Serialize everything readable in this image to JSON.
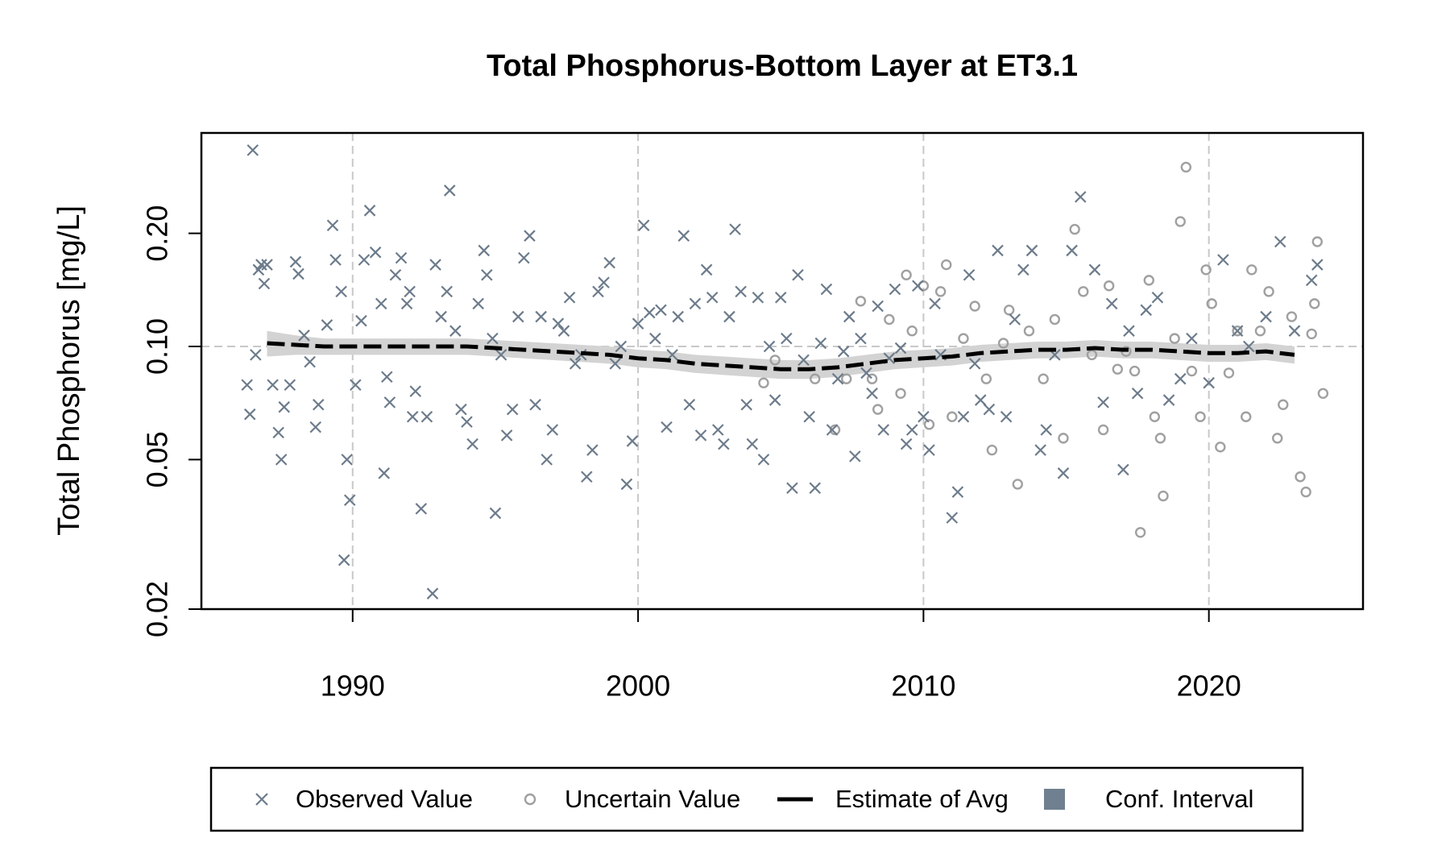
{
  "chart_data": {
    "type": "scatter",
    "title": "Total Phosphorus-Bottom Layer at ET3.1",
    "y_label": "Total Phosphorus [mg/L]",
    "y_log": true,
    "xlim": [
      1984.7,
      2025.4
    ],
    "ylim": [
      0.02,
      0.37
    ],
    "xticks": [
      1990,
      2000,
      2010,
      2020
    ],
    "yticks": [
      0.02,
      0.05,
      {
        "value": 0.1,
        "label": "0.10"
      },
      {
        "value": 0.2,
        "label": "0.20"
      }
    ],
    "x_grid": true,
    "y_grid_at": [
      0.1
    ],
    "legend": "bottom",
    "series": [
      {
        "name": "Observed Value",
        "marker": "x",
        "color": "#6c7b8b",
        "x": [
          1986.3,
          1986.4,
          1986.5,
          1986.6,
          1986.7,
          1986.8,
          1986.9,
          1987.0,
          1987.2,
          1987.4,
          1987.5,
          1987.6,
          1987.8,
          1988.0,
          1988.1,
          1988.3,
          1988.5,
          1988.7,
          1988.8,
          1989.1,
          1989.3,
          1989.4,
          1989.6,
          1989.7,
          1989.8,
          1989.9,
          1990.1,
          1990.3,
          1990.4,
          1990.6,
          1990.8,
          1991.0,
          1991.1,
          1991.2,
          1991.3,
          1991.5,
          1991.7,
          1991.9,
          1992.0,
          1992.1,
          1992.2,
          1992.4,
          1992.6,
          1992.8,
          1992.9,
          1993.1,
          1993.3,
          1993.4,
          1993.6,
          1993.8,
          1994.0,
          1994.2,
          1994.4,
          1994.6,
          1994.7,
          1994.9,
          1995.0,
          1995.2,
          1995.4,
          1995.6,
          1995.8,
          1996.0,
          1996.2,
          1996.4,
          1996.6,
          1996.8,
          1997.0,
          1997.2,
          1997.4,
          1997.6,
          1997.8,
          1998.0,
          1998.2,
          1998.4,
          1998.6,
          1998.8,
          1999.0,
          1999.2,
          1999.4,
          1999.6,
          1999.8,
          2000.0,
          2000.2,
          2000.4,
          2000.6,
          2000.8,
          2001.0,
          2001.2,
          2001.4,
          2001.6,
          2001.8,
          2002.0,
          2002.2,
          2002.4,
          2002.6,
          2002.8,
          2003.0,
          2003.2,
          2003.4,
          2003.6,
          2003.8,
          2004.0,
          2004.2,
          2004.4,
          2004.6,
          2004.8,
          2005.0,
          2005.2,
          2005.4,
          2005.6,
          2005.8,
          2006.0,
          2006.2,
          2006.4,
          2006.6,
          2006.8,
          2007.0,
          2007.2,
          2007.4,
          2007.6,
          2007.8,
          2008.0,
          2008.2,
          2008.4,
          2008.6,
          2008.8,
          2009.0,
          2009.2,
          2009.4,
          2009.6,
          2009.8,
          2010.0,
          2010.2,
          2010.4,
          2010.6,
          2011.0,
          2011.2,
          2011.4,
          2011.6,
          2011.8,
          2012.0,
          2012.3,
          2012.6,
          2012.9,
          2013.2,
          2013.5,
          2013.8,
          2014.1,
          2014.3,
          2014.6,
          2014.9,
          2015.2,
          2015.5,
          2016.0,
          2016.3,
          2016.6,
          2017.0,
          2017.2,
          2017.5,
          2017.8,
          2018.2,
          2018.6,
          2019.0,
          2019.4,
          2020.0,
          2020.5,
          2021.0,
          2021.4,
          2022.0,
          2022.5,
          2023.0,
          2023.6,
          2023.8
        ],
        "values": [
          0.079,
          0.066,
          0.333,
          0.095,
          0.16,
          0.165,
          0.147,
          0.165,
          0.079,
          0.059,
          0.05,
          0.069,
          0.079,
          0.168,
          0.156,
          0.107,
          0.091,
          0.061,
          0.07,
          0.114,
          0.21,
          0.17,
          0.14,
          0.027,
          0.05,
          0.039,
          0.079,
          0.117,
          0.17,
          0.23,
          0.178,
          0.13,
          0.046,
          0.083,
          0.071,
          0.155,
          0.172,
          0.13,
          0.14,
          0.065,
          0.076,
          0.037,
          0.065,
          0.022,
          0.165,
          0.12,
          0.14,
          0.26,
          0.11,
          0.068,
          0.063,
          0.055,
          0.13,
          0.18,
          0.155,
          0.105,
          0.036,
          0.095,
          0.058,
          0.068,
          0.12,
          0.172,
          0.197,
          0.07,
          0.12,
          0.05,
          0.06,
          0.115,
          0.11,
          0.135,
          0.09,
          0.095,
          0.045,
          0.053,
          0.14,
          0.148,
          0.167,
          0.09,
          0.1,
          0.043,
          0.056,
          0.115,
          0.21,
          0.123,
          0.105,
          0.125,
          0.061,
          0.095,
          0.12,
          0.197,
          0.07,
          0.13,
          0.058,
          0.16,
          0.135,
          0.06,
          0.055,
          0.12,
          0.205,
          0.14,
          0.07,
          0.055,
          0.135,
          0.05,
          0.1,
          0.072,
          0.135,
          0.105,
          0.042,
          0.155,
          0.092,
          0.065,
          0.042,
          0.102,
          0.142,
          0.06,
          0.082,
          0.097,
          0.12,
          0.051,
          0.105,
          0.085,
          0.075,
          0.128,
          0.06,
          0.093,
          0.142,
          0.099,
          0.055,
          0.06,
          0.145,
          0.065,
          0.053,
          0.13,
          0.095,
          0.035,
          0.041,
          0.065,
          0.155,
          0.09,
          0.072,
          0.068,
          0.18,
          0.065,
          0.118,
          0.16,
          0.18,
          0.053,
          0.06,
          0.095,
          0.046,
          0.18,
          0.25,
          0.16,
          0.071,
          0.13,
          0.047,
          0.11,
          0.075,
          0.125,
          0.135,
          0.072,
          0.082,
          0.105,
          0.08,
          0.17,
          0.11,
          0.1,
          0.12,
          0.19,
          0.11,
          0.15,
          0.165
        ]
      },
      {
        "name": "Uncertain Value",
        "marker": "o",
        "color": "#a0a0a0",
        "x": [
          2004.4,
          2004.8,
          2006.2,
          2006.9,
          2007.3,
          2007.8,
          2008.2,
          2008.4,
          2008.8,
          2009.2,
          2009.4,
          2009.6,
          2010.0,
          2010.2,
          2010.6,
          2010.8,
          2011.0,
          2011.4,
          2011.8,
          2012.2,
          2012.4,
          2012.8,
          2013.0,
          2013.3,
          2013.7,
          2014.2,
          2014.6,
          2014.9,
          2015.3,
          2015.6,
          2015.9,
          2016.3,
          2016.5,
          2016.8,
          2017.1,
          2017.4,
          2017.6,
          2017.9,
          2018.1,
          2018.3,
          2018.4,
          2018.8,
          2019.0,
          2019.2,
          2019.4,
          2019.7,
          2019.9,
          2020.1,
          2020.4,
          2020.7,
          2021.0,
          2021.3,
          2021.5,
          2021.8,
          2022.1,
          2022.4,
          2022.6,
          2022.9,
          2023.2,
          2023.4,
          2023.6,
          2023.8,
          2024.0,
          2023.7
        ],
        "values": [
          0.08,
          0.092,
          0.082,
          0.06,
          0.082,
          0.132,
          0.082,
          0.068,
          0.118,
          0.075,
          0.155,
          0.11,
          0.145,
          0.062,
          0.14,
          0.165,
          0.065,
          0.105,
          0.128,
          0.082,
          0.053,
          0.102,
          0.125,
          0.043,
          0.11,
          0.082,
          0.118,
          0.057,
          0.205,
          0.14,
          0.095,
          0.06,
          0.145,
          0.087,
          0.097,
          0.086,
          0.032,
          0.15,
          0.065,
          0.057,
          0.04,
          0.105,
          0.215,
          0.3,
          0.086,
          0.065,
          0.16,
          0.13,
          0.054,
          0.085,
          0.11,
          0.065,
          0.16,
          0.11,
          0.14,
          0.057,
          0.07,
          0.12,
          0.045,
          0.041,
          0.108,
          0.19,
          0.075,
          0.13
        ]
      },
      {
        "name": "Estimate of Avg",
        "marker": "line",
        "color": "#000000",
        "x": [
          1987,
          1988,
          1989,
          1990,
          1991,
          1992,
          1993,
          1994,
          1995,
          1996,
          1997,
          1998,
          1999,
          2000,
          2001,
          2002,
          2003,
          2004,
          2005,
          2006,
          2007,
          2008,
          2009,
          2010,
          2011,
          2012,
          2013,
          2014,
          2015,
          2016,
          2017,
          2018,
          2019,
          2020,
          2021,
          2022,
          2023
        ],
        "values": [
          0.102,
          0.101,
          0.1,
          0.1,
          0.1,
          0.1,
          0.1,
          0.1,
          0.099,
          0.098,
          0.097,
          0.096,
          0.095,
          0.093,
          0.092,
          0.09,
          0.089,
          0.088,
          0.087,
          0.087,
          0.088,
          0.09,
          0.092,
          0.093,
          0.094,
          0.096,
          0.097,
          0.098,
          0.098,
          0.099,
          0.098,
          0.098,
          0.097,
          0.096,
          0.096,
          0.097,
          0.095
        ]
      },
      {
        "name": "Conf. Interval",
        "marker": "band",
        "color": "#708090",
        "fill": "#d3d3d3",
        "x": [
          1987,
          1988,
          1989,
          1990,
          1991,
          1992,
          1993,
          1994,
          1995,
          1996,
          1997,
          1998,
          1999,
          2000,
          2001,
          2002,
          2003,
          2004,
          2005,
          2006,
          2007,
          2008,
          2009,
          2010,
          2011,
          2012,
          2013,
          2014,
          2015,
          2016,
          2017,
          2018,
          2019,
          2020,
          2021,
          2022,
          2023
        ],
        "lower": [
          0.094,
          0.095,
          0.095,
          0.095,
          0.095,
          0.095,
          0.095,
          0.095,
          0.094,
          0.093,
          0.092,
          0.091,
          0.09,
          0.088,
          0.087,
          0.085,
          0.084,
          0.083,
          0.082,
          0.082,
          0.083,
          0.085,
          0.087,
          0.088,
          0.089,
          0.091,
          0.092,
          0.093,
          0.093,
          0.094,
          0.093,
          0.093,
          0.092,
          0.091,
          0.091,
          0.092,
          0.09
        ],
        "upper": [
          0.11,
          0.107,
          0.105,
          0.105,
          0.105,
          0.105,
          0.105,
          0.105,
          0.104,
          0.103,
          0.102,
          0.101,
          0.1,
          0.098,
          0.097,
          0.095,
          0.094,
          0.093,
          0.092,
          0.092,
          0.093,
          0.095,
          0.097,
          0.098,
          0.099,
          0.101,
          0.102,
          0.103,
          0.103,
          0.104,
          0.103,
          0.103,
          0.102,
          0.101,
          0.101,
          0.102,
          0.1
        ]
      }
    ]
  }
}
